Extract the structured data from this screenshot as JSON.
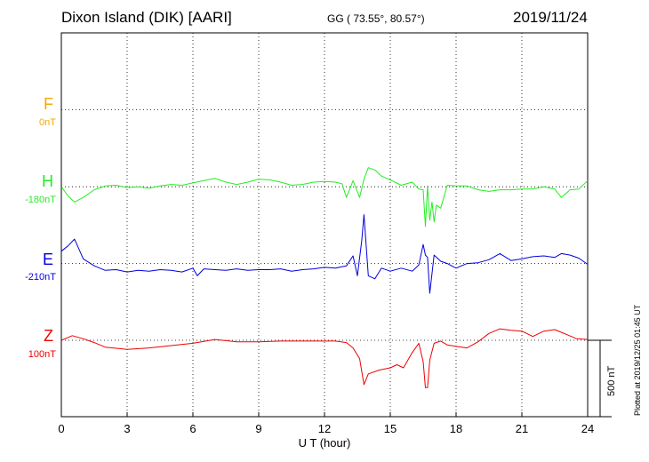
{
  "header": {
    "station": "Dixon Island (DIK)  [AARI]",
    "coords": "GG ( 73.55°,  80.57°)",
    "date": "2019/11/24"
  },
  "side_note": "Plotted at 2019/12/25 01:45 UT",
  "colors": {
    "F": "#f5a800",
    "H": "#22ee22",
    "E": "#0000dd",
    "Z": "#ee0000",
    "grid": "#000000"
  },
  "chart_data": {
    "type": "line",
    "title": "Dixon Island (DIK)  [AARI]",
    "xlabel": "U T (hour)",
    "xlim": [
      0,
      24
    ],
    "x_ticks": [
      "0",
      "3",
      "6",
      "9",
      "12",
      "15",
      "18",
      "21",
      "24"
    ],
    "grid": true,
    "scale_bar": {
      "label": "500 nT",
      "value_nT": 500
    },
    "components": [
      {
        "name": "F",
        "baseline": "0nT"
      },
      {
        "name": "H",
        "baseline": "-180nT"
      },
      {
        "name": "E",
        "baseline": "-210nT"
      },
      {
        "name": "Z",
        "baseline": "100nT"
      }
    ],
    "series": [
      {
        "name": "H",
        "unit": "nT",
        "baseline_nT": -180,
        "x": [
          0,
          0.3,
          0.6,
          1.0,
          1.5,
          2,
          2.5,
          3,
          3.5,
          4,
          4.5,
          5,
          5.5,
          6,
          6.5,
          7,
          7.5,
          8,
          8.5,
          9,
          9.5,
          10,
          10.5,
          11,
          11.5,
          12,
          12.5,
          12.8,
          13.0,
          13.3,
          13.6,
          13.8,
          14.0,
          14.3,
          14.6,
          15,
          15.5,
          16,
          16.3,
          16.5,
          16.6,
          16.7,
          16.8,
          16.9,
          17.0,
          17.1,
          17.3,
          17.6,
          18,
          18.5,
          19,
          19.5,
          20,
          20.5,
          21,
          21.5,
          22,
          22.5,
          22.8,
          23.2,
          23.6,
          24
        ],
        "y": [
          -180,
          -240,
          -280,
          -250,
          -200,
          -175,
          -170,
          -185,
          -180,
          -190,
          -175,
          -165,
          -170,
          -155,
          -140,
          -125,
          -150,
          -165,
          -150,
          -130,
          -135,
          -150,
          -170,
          -165,
          -150,
          -145,
          -150,
          -160,
          -250,
          -140,
          -250,
          -130,
          -55,
          -70,
          -110,
          -135,
          -170,
          -150,
          -195,
          -200,
          -440,
          -175,
          -400,
          -280,
          -410,
          -300,
          -320,
          -170,
          -175,
          -175,
          -200,
          -210,
          -200,
          -200,
          -195,
          -195,
          -180,
          -195,
          -250,
          -200,
          -195,
          -140
        ]
      },
      {
        "name": "E",
        "unit": "nT",
        "baseline_nT": -210,
        "x": [
          0,
          0.3,
          0.6,
          1.0,
          1.5,
          2,
          2.5,
          3,
          3.5,
          4,
          4.5,
          5,
          5.5,
          6,
          6.2,
          6.5,
          7,
          7.5,
          8,
          8.5,
          9,
          9.5,
          10,
          10.5,
          11,
          11.5,
          12,
          12.5,
          13.0,
          13.3,
          13.5,
          13.7,
          13.8,
          14.0,
          14.3,
          14.6,
          15,
          15.5,
          16,
          16.3,
          16.5,
          16.6,
          16.7,
          16.8,
          17.0,
          17.3,
          17.6,
          18,
          18.5,
          19,
          19.5,
          20,
          20.5,
          21,
          21.5,
          22,
          22.5,
          22.8,
          23.2,
          23.6,
          24
        ],
        "y": [
          -130,
          -95,
          -50,
          -180,
          -225,
          -255,
          -250,
          -265,
          -255,
          -260,
          -250,
          -255,
          -265,
          -240,
          -290,
          -245,
          -250,
          -255,
          -245,
          -255,
          -250,
          -250,
          -245,
          -260,
          -250,
          -245,
          -235,
          -240,
          -225,
          -160,
          -290,
          -60,
          110,
          -290,
          -310,
          -240,
          -260,
          -240,
          -260,
          -220,
          -85,
          -155,
          -170,
          -405,
          -155,
          -195,
          -210,
          -240,
          -210,
          -205,
          -185,
          -145,
          -190,
          -180,
          -165,
          -160,
          -170,
          -145,
          -155,
          -175,
          -215
        ]
      },
      {
        "name": "Z",
        "unit": "nT",
        "baseline_nT": 100,
        "x": [
          0,
          0.5,
          1,
          1.5,
          2,
          3,
          4,
          5,
          6,
          7,
          8,
          9,
          10,
          11,
          12,
          12.5,
          13,
          13.3,
          13.6,
          13.8,
          14.0,
          14.5,
          15,
          15.3,
          15.6,
          16,
          16.3,
          16.5,
          16.6,
          16.7,
          16.8,
          17.0,
          17.3,
          17.6,
          18,
          18.5,
          19,
          19.5,
          20,
          20.5,
          21,
          21.5,
          22,
          22.5,
          23,
          23.5,
          24
        ],
        "y": [
          100,
          130,
          110,
          85,
          55,
          40,
          50,
          65,
          80,
          105,
          90,
          90,
          95,
          95,
          95,
          95,
          85,
          50,
          -20,
          -190,
          -120,
          -95,
          -80,
          -60,
          -80,
          20,
          80,
          -40,
          -210,
          -210,
          -30,
          80,
          95,
          70,
          60,
          50,
          90,
          145,
          175,
          165,
          160,
          125,
          160,
          170,
          140,
          110,
          105
        ]
      }
    ]
  }
}
